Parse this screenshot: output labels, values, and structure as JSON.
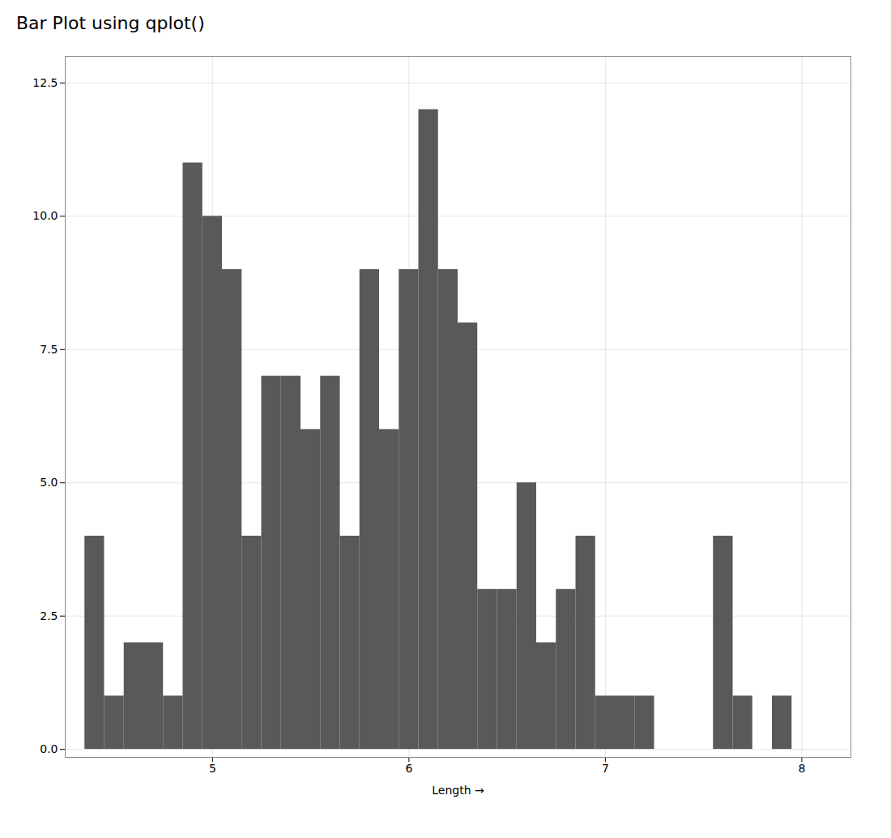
{
  "chart_data": {
    "type": "bar",
    "title": "Bar Plot using qplot()",
    "xlabel": "Length",
    "x": [
      4.4,
      4.5,
      4.6,
      4.7,
      4.8,
      4.9,
      5.0,
      5.1,
      5.2,
      5.3,
      5.4,
      5.5,
      5.6,
      5.7,
      5.8,
      5.9,
      6.0,
      6.1,
      6.2,
      6.3,
      6.4,
      6.5,
      6.6,
      6.7,
      6.8,
      6.9,
      7.0,
      7.1,
      7.2,
      7.6,
      7.7,
      7.9
    ],
    "values": [
      4,
      1,
      2,
      2,
      1,
      11,
      10,
      9,
      4,
      7,
      7,
      6,
      7,
      4,
      9,
      6,
      9,
      12,
      9,
      8,
      3,
      3,
      5,
      2,
      3,
      4,
      1,
      1,
      1,
      4,
      1,
      1
    ],
    "color": "#595959",
    "xlim": [
      4.25,
      8.25
    ],
    "xticks": [
      5,
      6,
      7,
      8
    ],
    "ylim": [
      -0.15,
      13
    ],
    "yticks": [
      {
        "value": 0.0,
        "label": "0.0"
      },
      2.5,
      {
        "value": 5.0,
        "label": "5.0"
      },
      7.5,
      {
        "value": 10.0,
        "label": "10.0"
      },
      12.5
    ],
    "grid": true
  }
}
